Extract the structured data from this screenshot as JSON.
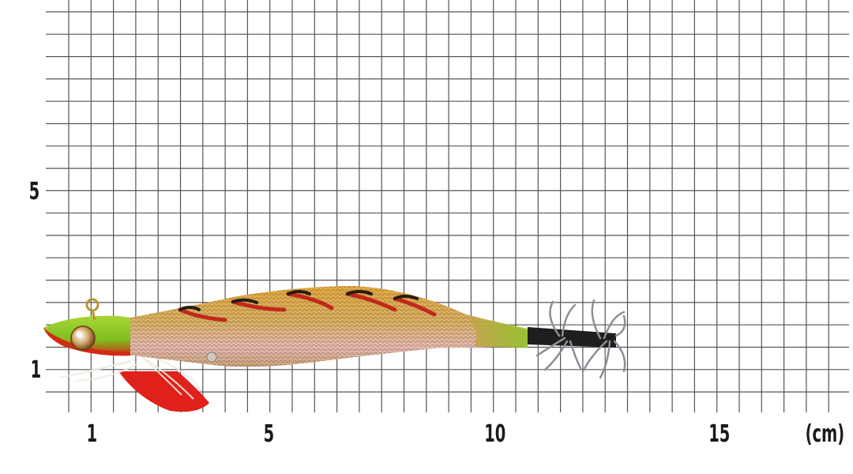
{
  "axis": {
    "x_ticks": [
      {
        "value": "1",
        "pos": 1
      },
      {
        "value": "5",
        "pos": 5
      },
      {
        "value": "10",
        "pos": 10
      },
      {
        "value": "15",
        "pos": 15
      }
    ],
    "y_ticks": [
      {
        "value": "5",
        "pos": 5
      },
      {
        "value": "1",
        "pos": 1
      }
    ],
    "unit": "(cm)"
  },
  "colors": {
    "grid": "#555555",
    "lure_head": "#9acd32",
    "lure_body": "#d9a441",
    "lure_fin": "#e0201a",
    "stripe": "#c0281c",
    "hook": "#8a8f96"
  }
}
